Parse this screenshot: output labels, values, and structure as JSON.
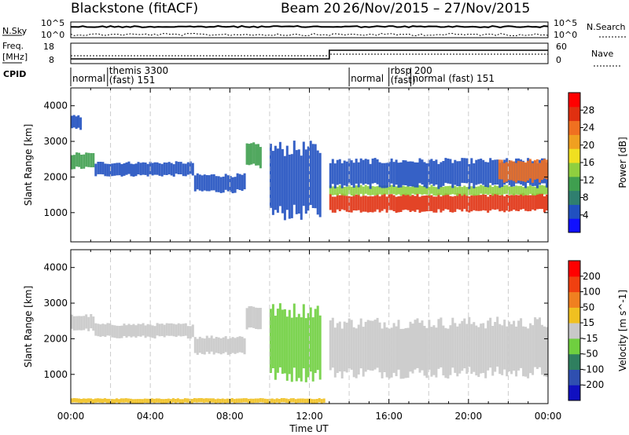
{
  "header": {
    "title": "Blackstone (fitACF)",
    "beam": "Beam 20",
    "date_range": "26/Nov/2015 – 27/Nov/2015"
  },
  "strip_labels": {
    "nsky": "N.Sky",
    "nsky_scale_top": "10^5",
    "nsky_scale_bot": "10^0",
    "nsearch": "N.Search",
    "nsearch_scale_top": "10^5",
    "nsearch_scale_bot": "10^0",
    "freq": "Freq.",
    "freq_unit": "[MHz]",
    "freq_ticks": [
      "18",
      "8"
    ],
    "nave": "Nave",
    "nave_ticks": [
      "60",
      "0"
    ],
    "cpid": "CPID"
  },
  "cpid_segments": [
    {
      "label": "normal",
      "start_h": 0.0
    },
    {
      "label": "themis 3300",
      "label2": "(fast) 151",
      "start_h": 1.85
    },
    {
      "label": "normal",
      "start_h": 14.0
    },
    {
      "label": "rbsp 200",
      "label2": "(fast)",
      "start_h": 16.0
    },
    {
      "label": "normal (fast) 151",
      "start_h": 17.1
    }
  ],
  "chart_data": {
    "type": "heatmap",
    "xlabel": "Time UT",
    "x_ticks": [
      "00:00",
      "04:00",
      "08:00",
      "12:00",
      "16:00",
      "20:00",
      "00:00"
    ],
    "xlim_hours": [
      0,
      24
    ],
    "ylabel": "Slant Range [km]",
    "y_ticks": [
      1000,
      2000,
      3000,
      4000
    ],
    "ylim_km": [
      180,
      4500
    ],
    "power_colorbar": {
      "label": "Power [dB]",
      "ticks": [
        4,
        8,
        12,
        16,
        20,
        24,
        28
      ],
      "colors": [
        "#1010ff",
        "#2050c0",
        "#2f7f6f",
        "#3f9f4f",
        "#8fcf3f",
        "#f0e020",
        "#f0a020",
        "#f07020",
        "#e03010",
        "#ff0000"
      ]
    },
    "velocity_colorbar": {
      "label": "Velocity [m s^-1]",
      "ticks": [
        200,
        100,
        50,
        15,
        -15,
        -50,
        -100,
        -200
      ],
      "colors": [
        "#1010c0",
        "#2f4fb0",
        "#2f7f5f",
        "#6fcf3f",
        "#c8c8c8",
        "#f0c020",
        "#f08020",
        "#f04010",
        "#ff0000"
      ]
    },
    "power_bands": [
      {
        "h0": 0.0,
        "h1": 0.55,
        "r0": 3350,
        "r1": 3700,
        "color": "#2050c0"
      },
      {
        "h0": 0.0,
        "h1": 1.2,
        "r0": 2250,
        "r1": 2650,
        "color": "#3f9f4f"
      },
      {
        "h0": 1.2,
        "h1": 6.2,
        "r0": 2050,
        "r1": 2400,
        "color": "#2050c0"
      },
      {
        "h0": 6.2,
        "h1": 8.8,
        "r0": 1600,
        "r1": 2050,
        "color": "#2050c0"
      },
      {
        "h0": 8.8,
        "h1": 9.6,
        "r0": 2300,
        "r1": 2900,
        "color": "#3f9f4f"
      },
      {
        "h0": 10.0,
        "h1": 12.6,
        "r0": 1000,
        "r1": 2800,
        "color": "#2050c0"
      },
      {
        "h0": 13.0,
        "h1": 24.0,
        "r0": 1050,
        "r1": 1500,
        "color": "#e03010"
      },
      {
        "h0": 13.0,
        "h1": 24.0,
        "r0": 1500,
        "r1": 1750,
        "color": "#8fcf3f"
      },
      {
        "h0": 13.0,
        "h1": 24.0,
        "r0": 1750,
        "r1": 2450,
        "color": "#2050c0"
      },
      {
        "h0": 21.5,
        "h1": 24.0,
        "r0": 1900,
        "r1": 2450,
        "color": "#f07020"
      }
    ],
    "velocity_bands": [
      {
        "h0": 0.0,
        "h1": 1.2,
        "r0": 2250,
        "r1": 2650,
        "color": "#c8c8c8"
      },
      {
        "h0": 1.2,
        "h1": 6.2,
        "r0": 2050,
        "r1": 2400,
        "color": "#c8c8c8"
      },
      {
        "h0": 6.2,
        "h1": 8.8,
        "r0": 1600,
        "r1": 2050,
        "color": "#c8c8c8"
      },
      {
        "h0": 8.8,
        "h1": 9.6,
        "r0": 2300,
        "r1": 2900,
        "color": "#c8c8c8"
      },
      {
        "h0": 10.0,
        "h1": 12.6,
        "r0": 1000,
        "r1": 2800,
        "color": "#6fcf3f"
      },
      {
        "h0": 13.0,
        "h1": 24.0,
        "r0": 1050,
        "r1": 2450,
        "color": "#c8c8c8"
      },
      {
        "h0": 0.0,
        "h1": 12.8,
        "r0": 200,
        "r1": 320,
        "color": "#f0c020"
      }
    ]
  }
}
